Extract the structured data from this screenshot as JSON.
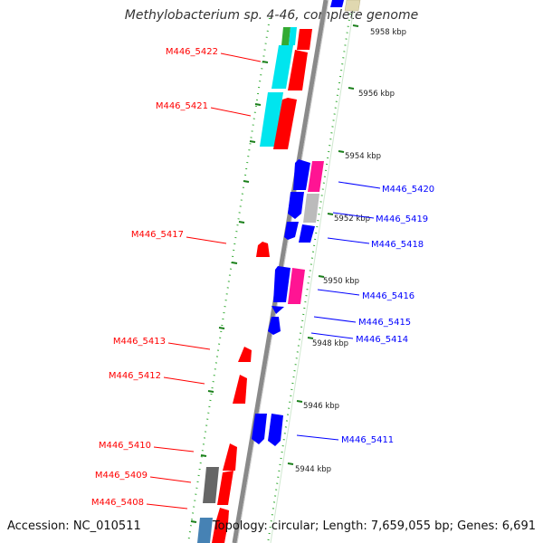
{
  "title": "Methylobacterium sp. 4-46, complete genome",
  "footer": {
    "accession": "Accession: NC_010511",
    "summary": "Topology: circular; Length: 7,659,055 bp; Genes: 6,691"
  },
  "scale_labels": [
    "5958 kbp",
    "5956 kbp",
    "5954 kbp",
    "5952 kbp",
    "5950 kbp",
    "5948 kbp",
    "5946 kbp",
    "5944 kbp"
  ],
  "gene_labels_left": [
    "M446_5422",
    "M446_5421",
    "M446_5417",
    "M446_5413",
    "M446_5412",
    "M446_5410",
    "M446_5409",
    "M446_5408"
  ],
  "gene_labels_right": [
    "M446_5420",
    "M446_5419",
    "M446_5418",
    "M446_5416",
    "M446_5415",
    "M446_5414",
    "M446_5411"
  ],
  "colors": {
    "forward": "#ff0000",
    "reverse": "#0000ff",
    "teal": "#00e5ee",
    "magenta": "#ff1493",
    "gray": "#bbbbbb",
    "dark_gray": "#666666",
    "green": "#33aa33",
    "tick_green": "#228b22",
    "backbone": "#888888"
  }
}
